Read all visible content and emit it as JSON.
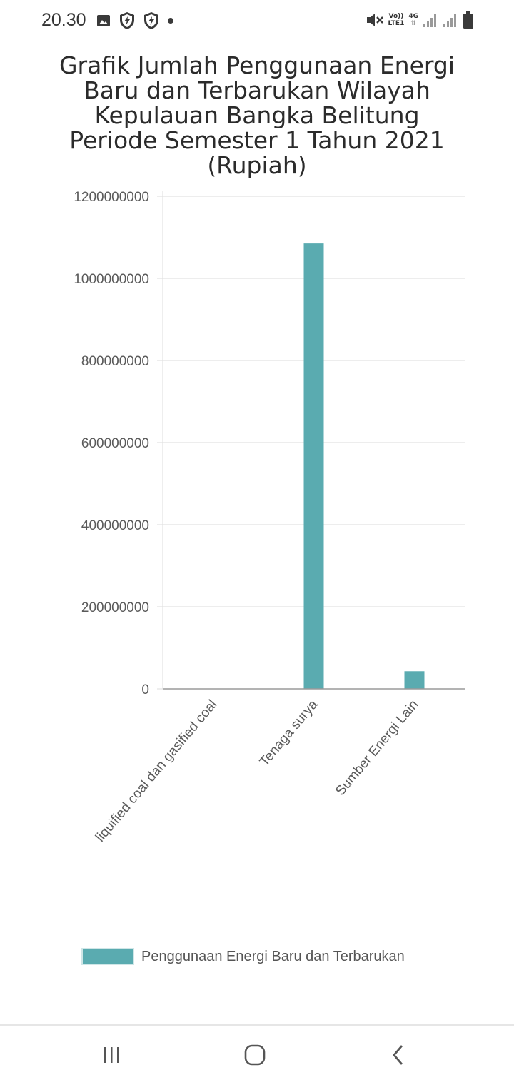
{
  "status_bar": {
    "time": "20.30",
    "left_icons": [
      "image-icon",
      "shield-icon",
      "shield-icon",
      "dot-icon"
    ],
    "right_icons": [
      "mute-icon",
      "volte-icon",
      "4g-icon",
      "signal-icon",
      "signal-icon",
      "battery-icon"
    ],
    "volte_label_top": "Vo))",
    "volte_label_bottom": "LTE1",
    "net_label": "4G"
  },
  "chart_data": {
    "type": "bar",
    "title": "Grafik Jumlah Penggunaan Energi Baru dan Terbarukan Wilayah Kepulauan Bangka Belitung Periode Semester 1 Tahun 2021 (Rupiah)",
    "title_lines": [
      "Grafik Jumlah Penggunaan Energi",
      "Baru dan Terbarukan Wilayah",
      "Kepulauan Bangka Belitung",
      "Periode Semester 1 Tahun 2021",
      "(Rupiah)"
    ],
    "categories": [
      "liquified coal dan gasified coal",
      "Tenaga surya",
      "Sumber Energi Lain"
    ],
    "series": [
      {
        "name": "Penggunaan Energi Baru dan Terbarukan",
        "values": [
          0,
          1085000000,
          43000000
        ],
        "color": "#5aabb0"
      }
    ],
    "ylim": [
      0,
      1200000000
    ],
    "yticks": [
      "0",
      "200000000",
      "400000000",
      "600000000",
      "800000000",
      "1000000000",
      "1200000000"
    ],
    "grid": true,
    "legend_position": "bottom",
    "xlabel": "",
    "ylabel": ""
  },
  "navigation": {
    "recent_icon": "recent-apps-icon",
    "home_icon": "home-icon",
    "back_icon": "back-icon"
  }
}
